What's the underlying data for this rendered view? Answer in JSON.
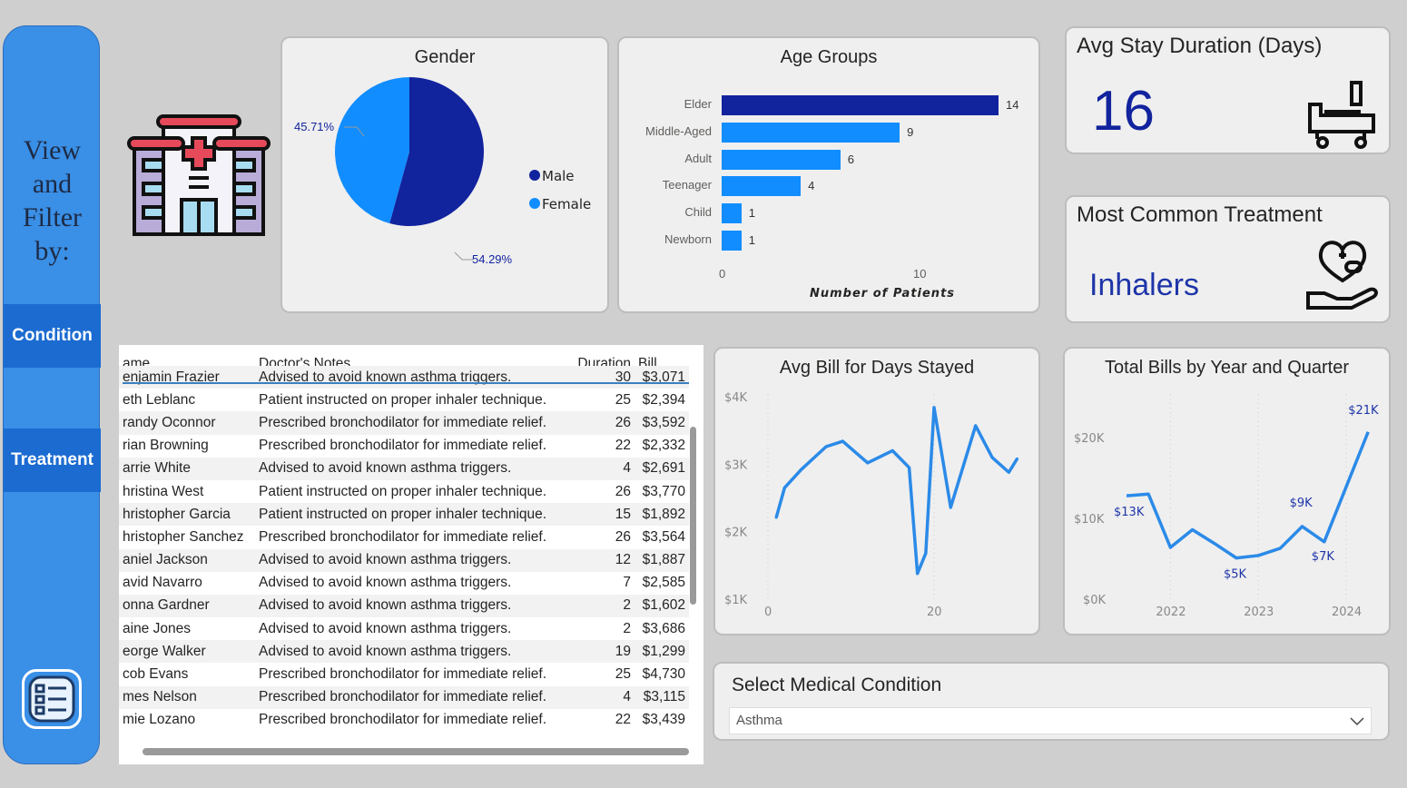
{
  "sidebar": {
    "title": "View and Filter by:",
    "buttons": [
      {
        "label": "Condition"
      },
      {
        "label": "Treatment"
      }
    ],
    "menu_icon": "list-menu-icon"
  },
  "logo_icon": "hospital-icon",
  "gender": {
    "title": "Gender",
    "legend": [
      "Male",
      "Female"
    ],
    "labels": {
      "female": "45.71%",
      "male": "54.29%"
    }
  },
  "age": {
    "title": "Age Groups",
    "xlabel": "Number of Patients",
    "ticks": [
      "0",
      "10"
    ]
  },
  "kpi_stay": {
    "title": "Avg Stay Duration (Days)",
    "value": "16",
    "icon": "hospital-bed-icon"
  },
  "kpi_treatment": {
    "title": "Most Common Treatment",
    "value": "Inhalers",
    "icon": "heart-care-hand-icon"
  },
  "table": {
    "headers": [
      "ame",
      "Doctor's Notes",
      "Duration",
      "Bill"
    ],
    "partial_top": [
      "enjamin Frazier",
      "Advised to avoid known asthma triggers.",
      "30",
      "$3,071"
    ],
    "rows": [
      [
        "eth Leblanc",
        "Patient instructed on proper inhaler technique.",
        "25",
        "$2,394"
      ],
      [
        "randy Oconnor",
        "Prescribed bronchodilator for immediate relief.",
        "26",
        "$3,592"
      ],
      [
        "rian Browning",
        "Prescribed bronchodilator for immediate relief.",
        "22",
        "$2,332"
      ],
      [
        "arrie White",
        "Advised to avoid known asthma triggers.",
        "4",
        "$2,691"
      ],
      [
        "hristina West",
        "Patient instructed on proper inhaler technique.",
        "26",
        "$3,770"
      ],
      [
        "hristopher Garcia",
        "Patient instructed on proper inhaler technique.",
        "15",
        "$1,892"
      ],
      [
        "hristopher Sanchez",
        "Prescribed bronchodilator for immediate relief.",
        "26",
        "$3,564"
      ],
      [
        "aniel Jackson",
        "Advised to avoid known asthma triggers.",
        "12",
        "$1,887"
      ],
      [
        "avid Navarro",
        "Advised to avoid known asthma triggers.",
        "7",
        "$2,585"
      ],
      [
        "onna Gardner",
        "Advised to avoid known asthma triggers.",
        "2",
        "$1,602"
      ],
      [
        "aine Jones",
        "Advised to avoid known asthma triggers.",
        "2",
        "$3,686"
      ],
      [
        "eorge Walker",
        "Advised to avoid known asthma triggers.",
        "19",
        "$1,299"
      ],
      [
        "cob Evans",
        "Prescribed bronchodilator for immediate relief.",
        "25",
        "$4,730"
      ],
      [
        "mes Nelson",
        "Prescribed bronchodilator for immediate relief.",
        "4",
        "$3,115"
      ],
      [
        "mie Lozano",
        "Prescribed bronchodilator for immediate relief.",
        "22",
        "$3,439"
      ]
    ]
  },
  "slicer": {
    "title": "Select Medical Condition",
    "value": "Asthma"
  },
  "colors": {
    "sidebar": "#3a8fe6",
    "button": "#1b6bd1",
    "navy": "#12239e",
    "blue": "#118dff",
    "line": "#2b8ae8"
  },
  "chart_data": [
    {
      "type": "pie",
      "title": "Gender",
      "slices": [
        {
          "name": "Male",
          "value": 54.29,
          "color": "#12239e"
        },
        {
          "name": "Female",
          "value": 45.71,
          "color": "#118dff"
        }
      ],
      "legend": "right"
    },
    {
      "type": "bar",
      "title": "Age Groups",
      "orientation": "horizontal",
      "categories": [
        "Elder",
        "Middle-Aged",
        "Adult",
        "Teenager",
        "Child",
        "Newborn"
      ],
      "values": [
        14,
        9,
        6,
        4,
        1,
        1
      ],
      "xlabel": "Number of Patients",
      "xlim": [
        0,
        14
      ]
    },
    {
      "type": "line",
      "title": "Avg Bill for Days Stayed",
      "x": [
        1,
        2,
        4,
        7,
        9,
        12,
        15,
        17,
        18,
        19,
        20,
        22,
        25,
        27,
        29,
        30
      ],
      "y": [
        2210,
        2650,
        2920,
        3260,
        3340,
        3020,
        3200,
        2950,
        1380,
        1680,
        3840,
        2360,
        3570,
        3100,
        2880,
        3080
      ],
      "ylim": [
        1000,
        4000
      ],
      "yticks": [
        "$1K",
        "$2K",
        "$3K",
        "$4K"
      ],
      "xticks": [
        "0",
        "20"
      ],
      "xlim": [
        0,
        30
      ]
    },
    {
      "type": "line",
      "title": "Total Bills by Year and Quarter",
      "x": [
        "2021 Q3",
        "2021 Q4",
        "2022 Q1",
        "2022 Q2",
        "2022 Q3",
        "2022 Q4",
        "2023 Q1",
        "2023 Q2",
        "2023 Q3",
        "2023 Q4",
        "2024 Q1",
        "2024 Q2"
      ],
      "y": [
        12800,
        13000,
        6400,
        8600,
        6900,
        5100,
        5400,
        6300,
        9000,
        7100,
        null,
        20700
      ],
      "data_labels": {
        "0": "$13K",
        "5": "$5K",
        "8": "$9K",
        "9": "$7K",
        "11": "$21K"
      },
      "ylim": [
        0,
        20000
      ],
      "yticks": [
        "$0K",
        "$10K",
        "$20K"
      ],
      "xticks": [
        "2022",
        "2023",
        "2024"
      ]
    }
  ]
}
